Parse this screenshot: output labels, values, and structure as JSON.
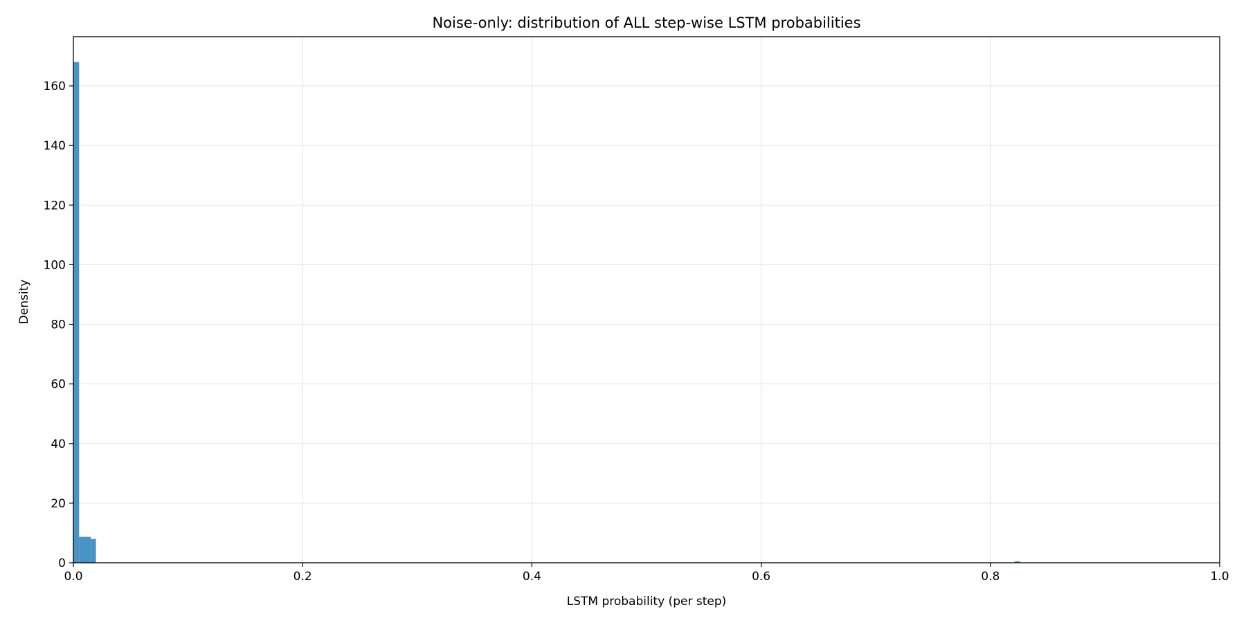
{
  "chart_data": {
    "type": "bar",
    "title": "Noise-only: distribution of ALL step-wise LSTM probabilities",
    "xlabel": "LSTM probability (per step)",
    "ylabel": "Density",
    "xlim": [
      0,
      1
    ],
    "ylim": [
      0,
      176.5
    ],
    "xticks": [
      "0.0",
      "0.2",
      "0.4",
      "0.6",
      "0.8",
      "1.0"
    ],
    "yticks": [
      "0",
      "20",
      "40",
      "60",
      "80",
      "100",
      "120",
      "140",
      "160"
    ],
    "grid": true,
    "bar_color": "#4a93c6",
    "bins": [
      {
        "x0": 0.0,
        "x1": 0.005,
        "value": 168
      },
      {
        "x0": 0.005,
        "x1": 0.0152,
        "value": 8.7
      },
      {
        "x0": 0.0152,
        "x1": 0.0197,
        "value": 8.0
      },
      {
        "x0": 0.8211,
        "x1": 0.8256,
        "value": 0.5
      }
    ]
  }
}
